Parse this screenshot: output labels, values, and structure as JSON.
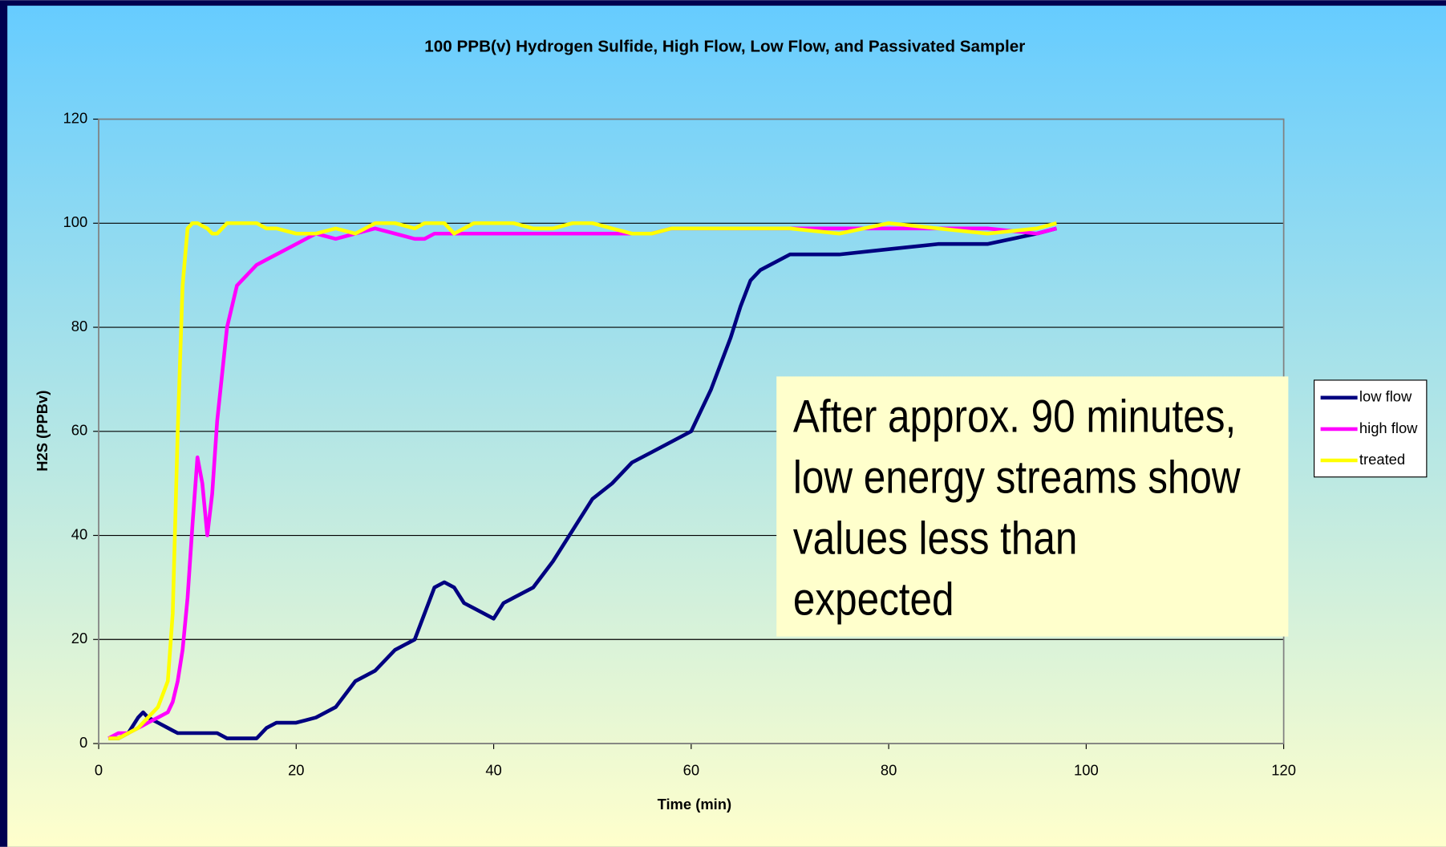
{
  "chart_data": {
    "type": "line",
    "title": "100 PPB(v) Hydrogen Sulfide, High Flow, Low Flow, and Passivated Sampler",
    "xlabel": "Time (min)",
    "ylabel": "H2S (PPBv)",
    "annotation": [
      "After approx. 90 minutes,",
      "low energy streams show",
      "values less than",
      "expected"
    ],
    "x": [
      1,
      2,
      3,
      4,
      4.5,
      5,
      6,
      7,
      7.5,
      8,
      8.5,
      9,
      9.5,
      10,
      10.5,
      11,
      11.5,
      12,
      13,
      14,
      16,
      17,
      18,
      20,
      22,
      24,
      26,
      28,
      30,
      32,
      33,
      34,
      35,
      36,
      37,
      38,
      40,
      41,
      42,
      44,
      46,
      48,
      50,
      52,
      54,
      56,
      58,
      60,
      61,
      62,
      64,
      65,
      66,
      67,
      70,
      75,
      80,
      85,
      90,
      95,
      97
    ],
    "series": [
      {
        "name": "low  flow",
        "color": "#000080",
        "values": [
          1,
          1,
          2,
          5,
          6,
          5,
          4,
          3,
          2.5,
          2,
          2,
          2,
          2,
          2,
          2,
          2,
          2,
          2,
          1,
          1,
          1,
          3,
          4,
          4,
          5,
          7,
          12,
          14,
          18,
          20,
          25,
          30,
          31,
          30,
          27,
          26,
          24,
          27,
          28,
          30,
          35,
          41,
          47,
          50,
          54,
          56,
          58,
          60,
          64,
          68,
          78,
          84,
          89,
          91,
          94,
          94,
          95,
          96,
          96,
          98,
          99
        ]
      },
      {
        "name": "high flow",
        "color": "#ff00ff",
        "values": [
          1,
          2,
          2,
          3,
          3.5,
          4,
          5,
          6,
          8,
          12,
          18,
          28,
          42,
          55,
          50,
          40,
          48,
          62,
          80,
          88,
          92,
          93,
          94,
          96,
          98,
          97,
          98,
          99,
          98,
          97,
          97,
          98,
          98,
          98,
          98,
          98,
          98,
          98,
          98,
          98,
          98,
          98,
          98,
          98,
          98,
          98,
          99,
          99,
          99,
          99,
          99,
          99,
          99,
          99,
          99,
          99,
          99,
          99,
          99,
          98,
          99
        ]
      },
      {
        "name": "treated",
        "color": "#ffff00",
        "values": [
          1,
          1,
          2,
          3,
          4,
          5,
          7,
          12,
          25,
          60,
          88,
          99,
          100,
          100,
          99.5,
          99,
          98,
          98,
          100,
          100,
          100,
          99,
          99,
          98,
          98,
          99,
          98,
          100,
          100,
          99,
          100,
          100,
          100,
          98,
          99,
          100,
          100,
          100,
          100,
          99,
          99,
          100,
          100,
          99,
          98,
          98,
          99,
          99,
          99,
          99,
          99,
          99,
          99,
          99,
          99,
          98,
          100,
          99,
          98,
          99,
          100
        ]
      }
    ],
    "xlim": [
      0,
      120
    ],
    "xticks": [
      0,
      20,
      40,
      60,
      80,
      100,
      120
    ],
    "ylim": [
      0,
      120
    ],
    "yticks": [
      0,
      20,
      40,
      60,
      80,
      100,
      120
    ],
    "grid": true,
    "legend": "right"
  }
}
